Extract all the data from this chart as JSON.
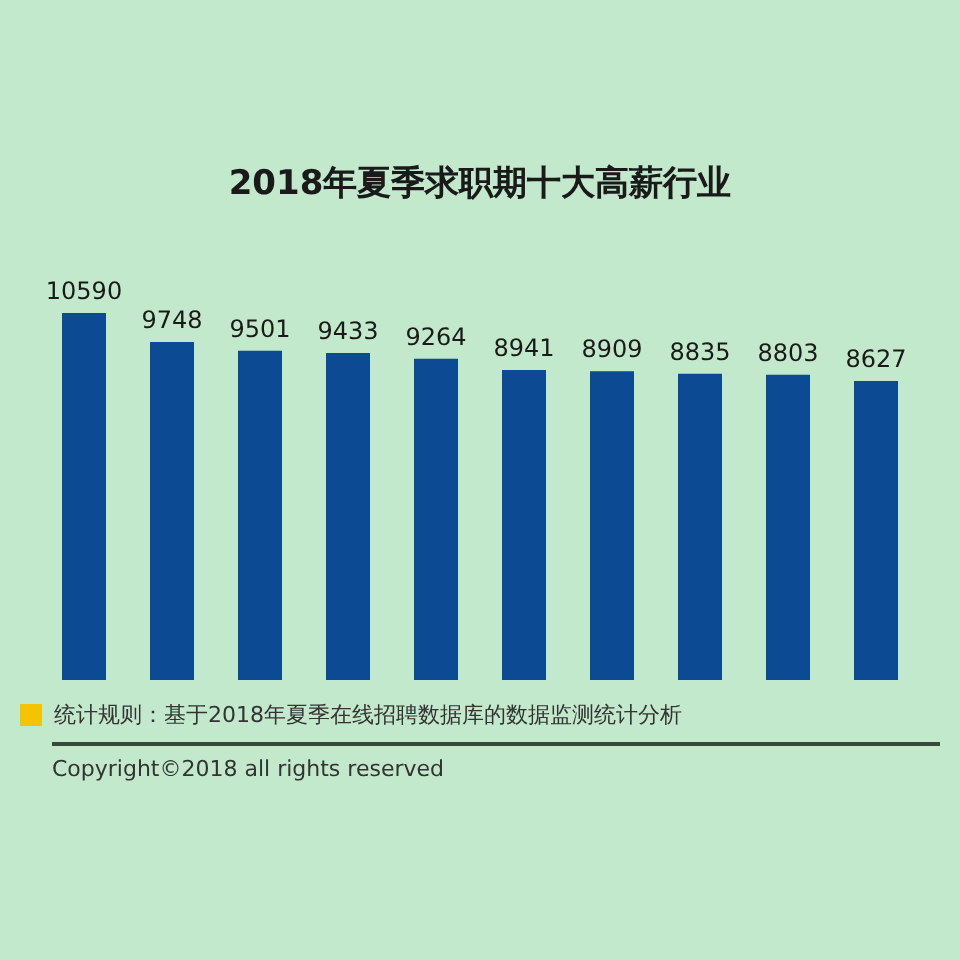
{
  "chart_data": {
    "type": "bar",
    "title": "2018年夏季求职期十大高薪行业",
    "categories": [
      null,
      null,
      null,
      null,
      null,
      null,
      null,
      null,
      null,
      null
    ],
    "values": [
      10590,
      9748,
      9501,
      9433,
      9264,
      8941,
      8909,
      8835,
      8803,
      8627
    ],
    "color": "#0d4a94",
    "data_labels": true,
    "legend": false,
    "tick_labels": false,
    "annotations": [
      "统计规则：基于2018年夏季在线招聘数据库的数据监测统计分析",
      "Copyright©2018 all rights reserved"
    ]
  }
}
